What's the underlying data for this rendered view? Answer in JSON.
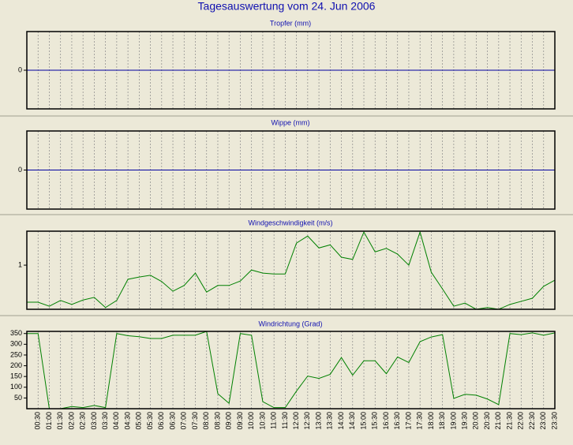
{
  "title": "Tagesauswertung vom 24. Jun 2006",
  "chart_data": [
    {
      "type": "line",
      "title": "Tropfer (mm)",
      "ylim": [
        -1,
        1
      ],
      "yticks": [
        0
      ],
      "grid": true,
      "series": [
        {
          "color": "#0000a0",
          "values": [
            0,
            0,
            0,
            0,
            0,
            0,
            0,
            0,
            0,
            0,
            0,
            0,
            0,
            0,
            0,
            0,
            0,
            0,
            0,
            0,
            0,
            0,
            0,
            0,
            0,
            0,
            0,
            0,
            0,
            0,
            0,
            0,
            0,
            0,
            0,
            0,
            0,
            0,
            0,
            0,
            0,
            0,
            0,
            0,
            0,
            0,
            0,
            0
          ]
        }
      ]
    },
    {
      "type": "line",
      "title": "Wippe (mm)",
      "ylim": [
        -1,
        1
      ],
      "yticks": [
        0
      ],
      "grid": true,
      "series": [
        {
          "color": "#0000a0",
          "values": [
            0,
            0,
            0,
            0,
            0,
            0,
            0,
            0,
            0,
            0,
            0,
            0,
            0,
            0,
            0,
            0,
            0,
            0,
            0,
            0,
            0,
            0,
            0,
            0,
            0,
            0,
            0,
            0,
            0,
            0,
            0,
            0,
            0,
            0,
            0,
            0,
            0,
            0,
            0,
            0,
            0,
            0,
            0,
            0,
            0,
            0,
            0,
            0
          ]
        }
      ]
    },
    {
      "type": "line",
      "title": "Windgeschwindigkeit (m/s)",
      "ylim": [
        0,
        1.77
      ],
      "yticks": [
        1
      ],
      "grid": true,
      "series": [
        {
          "color": "#008000",
          "values": [
            0.16,
            0.16,
            0.07,
            0.2,
            0.11,
            0.21,
            0.27,
            0.04,
            0.2,
            0.68,
            0.73,
            0.77,
            0.63,
            0.41,
            0.54,
            0.82,
            0.39,
            0.54,
            0.54,
            0.64,
            0.89,
            0.82,
            0.8,
            0.8,
            1.5,
            1.66,
            1.39,
            1.46,
            1.18,
            1.13,
            1.75,
            1.3,
            1.38,
            1.25,
            1.0,
            1.75,
            0.84,
            0.46,
            0.07,
            0.14,
            0,
            0.04,
            0,
            0.11,
            0.18,
            0.25,
            0.52,
            0.66
          ]
        }
      ]
    },
    {
      "type": "line",
      "title": "Windrichtung (Grad)",
      "ylim": [
        0,
        360
      ],
      "yticks": [
        50,
        100,
        150,
        200,
        250,
        300,
        350
      ],
      "grid": true,
      "categories": [
        null,
        "00:30",
        "01:00",
        "01:30",
        "02:00",
        "02:30",
        "03:00",
        "03:30",
        "04:00",
        "04:30",
        "05:00",
        "05:30",
        "06:00",
        "06:30",
        "07:00",
        "07:30",
        "08:00",
        "08:30",
        "09:00",
        "09:30",
        "10:00",
        "10:30",
        "11:00",
        "11:30",
        "12:00",
        "12:30",
        "13:00",
        "13:30",
        "14:00",
        "14:30",
        "15:00",
        "15:30",
        "16:00",
        "16:30",
        "17:00",
        "17:30",
        "18:00",
        "18:30",
        "19:00",
        "19:30",
        "20:00",
        "20:30",
        "21:00",
        "21:30",
        "22:00",
        "22:30",
        "23:00",
        "23:30"
      ],
      "series": [
        {
          "color": "#008000",
          "values": [
            350,
            350,
            0,
            0,
            10,
            5,
            15,
            5,
            350,
            340,
            335,
            327,
            327,
            342,
            342,
            342,
            360,
            70,
            25,
            350,
            342,
            33,
            5,
            5,
            82,
            152,
            141,
            160,
            238,
            156,
            223,
            223,
            163,
            241,
            215,
            312,
            334,
            345,
            48,
            67,
            63,
            45,
            19,
            350,
            345,
            353,
            342,
            353
          ]
        }
      ]
    }
  ]
}
